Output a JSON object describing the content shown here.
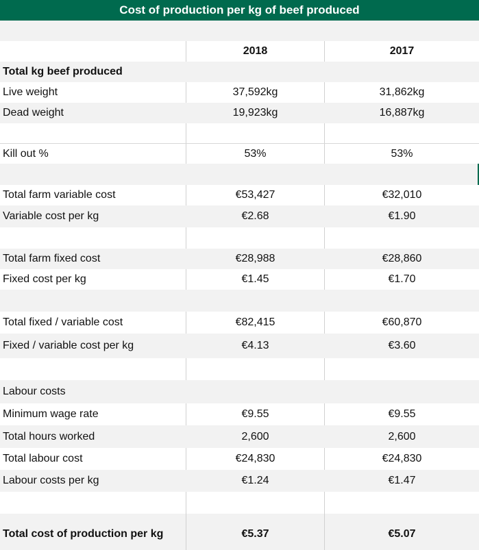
{
  "title": "Cost of production per kg of beef produced",
  "header": {
    "label": "",
    "y2018": "2018",
    "y2017": "2017"
  },
  "rows": [
    {
      "label": "Total kg beef produced",
      "v2018": "",
      "v2017": ""
    },
    {
      "label": "Live weight",
      "v2018": "37,592kg",
      "v2017": "31,862kg"
    },
    {
      "label": "Dead weight",
      "v2018": "19,923kg",
      "v2017": "16,887kg"
    },
    {
      "label": "Kill out %",
      "v2018": "53%",
      "v2017": "53%"
    },
    {
      "label": "Total farm variable cost",
      "v2018": "€53,427",
      "v2017": "€32,010"
    },
    {
      "label": "Variable cost per kg",
      "v2018": "€2.68",
      "v2017": "€1.90"
    },
    {
      "label": "Total farm fixed cost",
      "v2018": "€28,988",
      "v2017": "€28,860"
    },
    {
      "label": "Fixed cost per kg",
      "v2018": "€1.45",
      "v2017": "€1.70"
    },
    {
      "label": "Total fixed / variable cost",
      "v2018": "€82,415",
      "v2017": "€60,870"
    },
    {
      "label": "Fixed / variable cost per kg",
      "v2018": "€4.13",
      "v2017": "€3.60"
    },
    {
      "label": "Labour costs",
      "v2018": "",
      "v2017": ""
    },
    {
      "label": "Minimum wage rate",
      "v2018": "€9.55",
      "v2017": "€9.55"
    },
    {
      "label": "Total hours worked",
      "v2018": "2,600",
      "v2017": "2,600"
    },
    {
      "label": "Total labour cost",
      "v2018": "€24,830",
      "v2017": "€24,830"
    },
    {
      "label": "Labour costs per kg",
      "v2018": "€1.24",
      "v2017": "€1.47"
    },
    {
      "label": "Total cost of production per kg",
      "v2018": "€5.37",
      "v2017": "€5.07"
    }
  ],
  "colors": {
    "title_bar": "#006a4e",
    "row_shade": "#f2f2f2"
  }
}
